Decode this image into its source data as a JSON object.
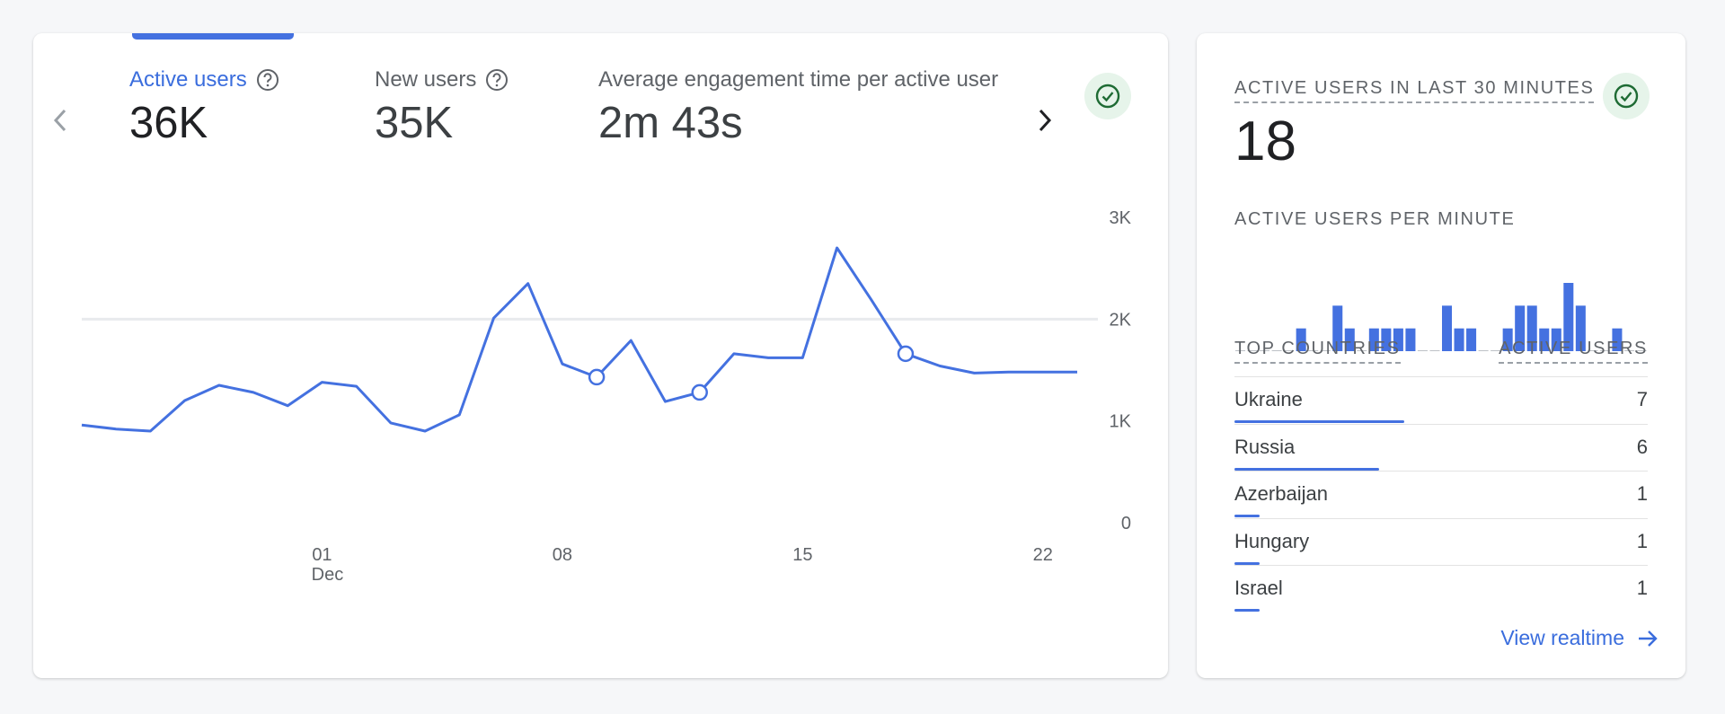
{
  "metrics": [
    {
      "label": "Active users",
      "value": "36K",
      "selected": true
    },
    {
      "label": "New users",
      "value": "35K",
      "selected": false
    },
    {
      "label": "Average engagement time per active user",
      "value": "2m 43s",
      "selected": false
    }
  ],
  "icons": {
    "prev": "chevron-left-icon",
    "next": "chevron-right-icon",
    "help": "help-circle-icon",
    "check": "check-circle-icon",
    "arrow": "arrow-right-icon"
  },
  "colors": {
    "accent": "#4471e0",
    "link": "#3a6ddd",
    "check_bg": "#e6f4ea",
    "check_fg": "#1e8e3e",
    "reference_line": "#e8eaed"
  },
  "chart_data": {
    "type": "line",
    "series": [
      {
        "x": [
          "Nov 24",
          "Nov 25",
          "Nov 26",
          "Nov 27",
          "Nov 28",
          "Nov 29",
          "Nov 30",
          "Dec 01",
          "Dec 02",
          "Dec 03",
          "Dec 04",
          "Dec 05",
          "Dec 06",
          "Dec 07",
          "Dec 08",
          "Dec 09",
          "Dec 10",
          "Dec 11",
          "Dec 12",
          "Dec 13",
          "Dec 14",
          "Dec 15",
          "Dec 16",
          "Dec 17",
          "Dec 18",
          "Dec 19",
          "Dec 20",
          "Dec 21",
          "Dec 22",
          "Dec 23"
        ],
        "values": [
          960,
          920,
          900,
          1200,
          1350,
          1280,
          1150,
          1380,
          1340,
          980,
          900,
          1060,
          2010,
          2350,
          1560,
          1430,
          1790,
          1190,
          1280,
          1660,
          1620,
          1620,
          2700,
          2190,
          1660,
          1540,
          1470,
          1480,
          1480,
          1480
        ],
        "markers": [
          "Dec 09",
          "Dec 12",
          "Dec 18"
        ]
      }
    ],
    "x_ticks": [
      "01",
      "08",
      "15",
      "22"
    ],
    "x_tick_sublabel": "Dec",
    "y_ticks": [
      "3K",
      "2K",
      "1K",
      "0"
    ],
    "ylim": [
      0,
      3000
    ],
    "reference_line_y": 2000,
    "grid": false
  },
  "realtime": {
    "title": "ACTIVE USERS IN LAST 30 MINUTES",
    "count": "18",
    "per_minute_title": "ACTIVE USERS PER MINUTE",
    "per_minute_values": [
      0,
      0,
      0,
      0,
      0,
      1,
      0,
      0,
      2,
      1,
      0,
      1,
      1,
      1,
      1,
      0,
      0,
      2,
      1,
      1,
      0,
      0,
      1,
      2,
      2,
      1,
      1,
      3,
      2,
      0,
      0,
      1,
      0,
      0
    ],
    "col_countries": "TOP COUNTRIES",
    "col_active": "ACTIVE USERS",
    "countries": [
      {
        "name": "Ukraine",
        "value": "7",
        "fraction": 0.41
      },
      {
        "name": "Russia",
        "value": "6",
        "fraction": 0.35
      },
      {
        "name": "Azerbaijan",
        "value": "1",
        "fraction": 0.06
      },
      {
        "name": "Hungary",
        "value": "1",
        "fraction": 0.06
      },
      {
        "name": "Israel",
        "value": "1",
        "fraction": 0.06
      }
    ],
    "view_link": "View realtime"
  }
}
